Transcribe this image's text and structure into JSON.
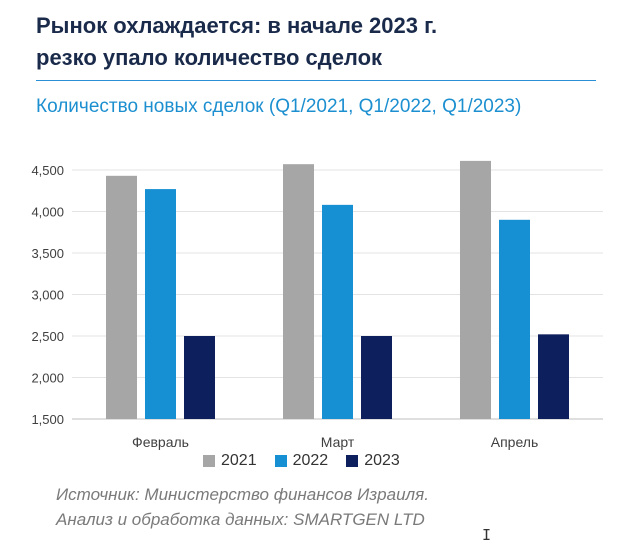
{
  "header": {
    "title_line1": "Рынок охлаждается: в начале 2023 г.",
    "title_line2": "резко упало количество сделок"
  },
  "subtitle": "Количество новых сделок (Q1/2021, Q1/2022, Q1/2023)",
  "chart_data": {
    "type": "bar",
    "categories": [
      "Февраль",
      "Март",
      "Апрель"
    ],
    "series": [
      {
        "name": "2021",
        "color": "#a6a6a6",
        "values": [
          4430,
          4570,
          4610
        ]
      },
      {
        "name": "2022",
        "color": "#168fd3",
        "values": [
          4270,
          4080,
          3900
        ]
      },
      {
        "name": "2023",
        "color": "#0d1f5c",
        "values": [
          2500,
          2500,
          2520
        ]
      }
    ],
    "ylim": [
      1500,
      4500
    ],
    "yticks": [
      1500,
      2000,
      2500,
      3000,
      3500,
      4000,
      4500
    ],
    "ytick_labels": [
      "1,500",
      "2,000",
      "2,500",
      "3,000",
      "3,500",
      "4,000",
      "4,500"
    ],
    "grid": true,
    "legend": "bottom"
  },
  "source": {
    "line1": "Источник: Министерство финансов Израиля.",
    "line2": "Анализ и обработка данных: SMARTGEN LTD"
  },
  "cursor": "I"
}
